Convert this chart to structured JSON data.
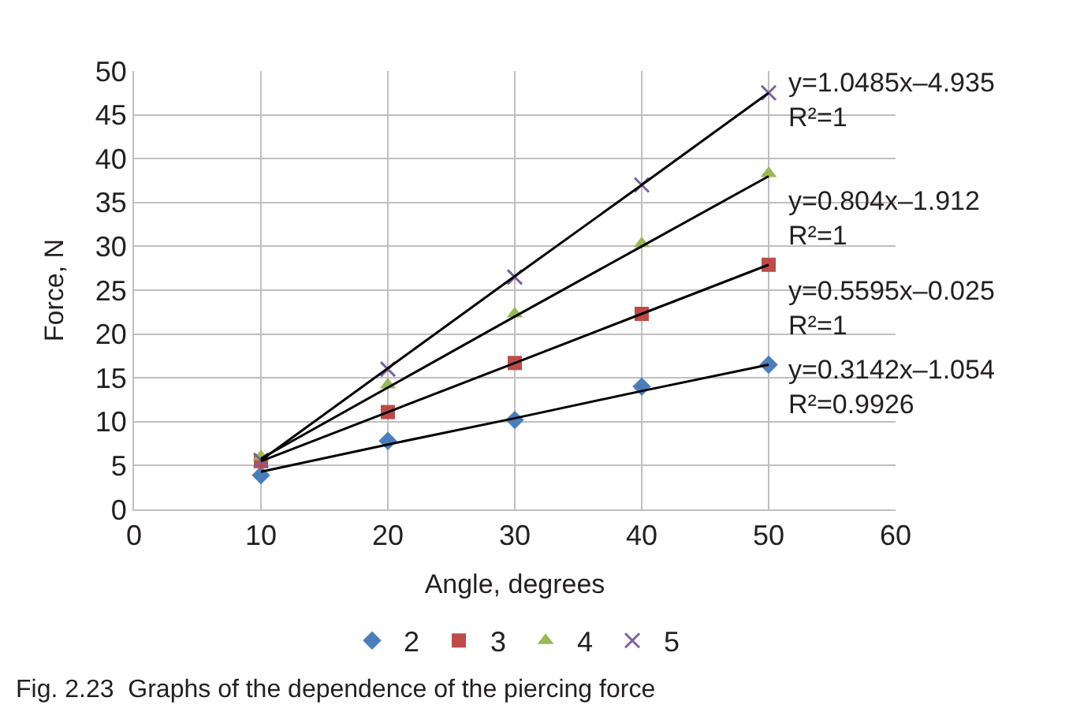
{
  "chart_data": {
    "type": "scatter",
    "xlabel": "Angle, degrees",
    "ylabel": "Force, N",
    "x": [
      10,
      20,
      30,
      40,
      50
    ],
    "xlim": [
      0,
      60
    ],
    "xticks": [
      0,
      10,
      20,
      30,
      40,
      50,
      60
    ],
    "ylim": [
      0,
      50
    ],
    "yticks": [
      0,
      5,
      10,
      15,
      20,
      25,
      30,
      35,
      40,
      45,
      50
    ],
    "grid": true,
    "legend": "bottom",
    "series": [
      {
        "name": "2",
        "color": "#4a7ebb",
        "marker": "diamond",
        "values": [
          3.9,
          7.8,
          10.2,
          14.0,
          16.5
        ]
      },
      {
        "name": "3",
        "color": "#be4b48",
        "marker": "square",
        "values": [
          5.5,
          11.1,
          16.7,
          22.3,
          27.9
        ]
      },
      {
        "name": "4",
        "color": "#98b954",
        "marker": "triangle",
        "values": [
          6.0,
          14.2,
          22.3,
          30.3,
          38.3
        ]
      },
      {
        "name": "5",
        "color": "#7d60a0",
        "marker": "cross",
        "values": [
          5.6,
          16.0,
          26.5,
          37.0,
          47.5
        ]
      },
      {
        "type": "line",
        "color": "#000000",
        "marker": "none",
        "values": [
          4.3,
          7.4,
          10.4,
          13.5,
          16.5
        ]
      },
      {
        "type": "line",
        "color": "#000000",
        "marker": "none",
        "values": [
          5.5,
          11.1,
          16.7,
          22.3,
          27.9
        ]
      },
      {
        "type": "line",
        "color": "#000000",
        "marker": "none",
        "values": [
          5.8,
          13.9,
          22.0,
          30.0,
          38.0
        ]
      },
      {
        "type": "line",
        "color": "#000000",
        "marker": "none",
        "values": [
          5.6,
          16.1,
          26.6,
          37.0,
          47.5
        ]
      }
    ],
    "annotations": [
      "y=1.0485x–4.935\nR²=1",
      "y=0.804x–1.912\nR²=1",
      "y=0.5595x–0.025\nR²=1",
      "y=0.3142x–1.054\nR²=0.9926",
      "Fig. 2.23  Graphs of the dependence of the piercing force"
    ]
  }
}
